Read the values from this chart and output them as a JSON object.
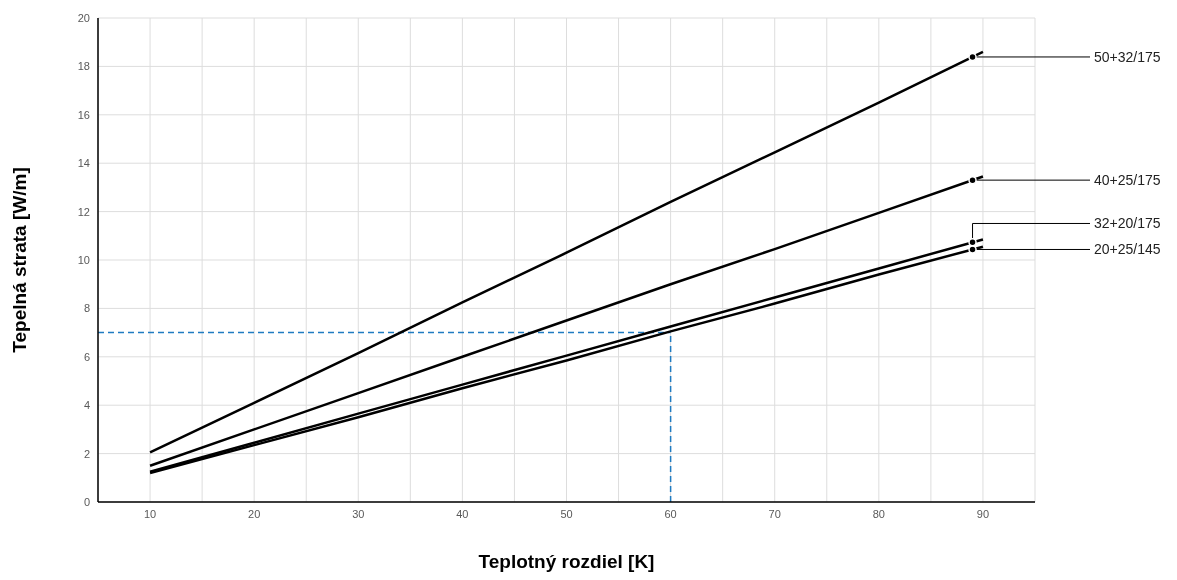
{
  "chart_data": {
    "type": "line",
    "xlabel": "Teplotný rozdiel [K]",
    "ylabel": "Tepelná strata [W/m]",
    "x": [
      10,
      20,
      30,
      40,
      50,
      60,
      70,
      80,
      90
    ],
    "series": [
      {
        "name": "50+32/175",
        "color": "#000000",
        "values": [
          2.05,
          4.1,
          6.15,
          8.25,
          10.3,
          12.4,
          14.45,
          16.5,
          18.6
        ]
      },
      {
        "name": "40+25/175",
        "color": "#000000",
        "values": [
          1.5,
          3.0,
          4.5,
          6.0,
          7.5,
          9.0,
          10.45,
          11.95,
          13.45
        ]
      },
      {
        "name": "32+20/175",
        "color": "#000000",
        "values": [
          1.25,
          2.45,
          3.65,
          4.85,
          6.05,
          7.25,
          8.45,
          9.65,
          10.85
        ]
      },
      {
        "name": "20+25/145",
        "color": "#000000",
        "values": [
          1.2,
          2.35,
          3.5,
          4.7,
          5.85,
          7.05,
          8.2,
          9.4,
          10.55
        ]
      }
    ],
    "xlim": [
      5,
      95
    ],
    "xticks": [
      {
        "value": 5,
        "label": null
      },
      10,
      {
        "value": 15,
        "label": null
      },
      20,
      {
        "value": 25,
        "label": null
      },
      30,
      {
        "value": 35,
        "label": null
      },
      40,
      {
        "value": 45,
        "label": null
      },
      50,
      {
        "value": 55,
        "label": null
      },
      60,
      {
        "value": 65,
        "label": null
      },
      70,
      {
        "value": 75,
        "label": null
      },
      80,
      {
        "value": 85,
        "label": null
      },
      90,
      {
        "value": 95,
        "label": null
      }
    ],
    "ylim": [
      0,
      20
    ],
    "yticks": [
      0,
      2,
      4,
      6,
      8,
      10,
      12,
      14,
      16,
      18,
      20
    ],
    "grid": true,
    "marker": "none",
    "line_style": "solid",
    "legend": false,
    "ref_lines": [
      {
        "axis": "y",
        "value": 7,
        "color": "#1f7bc1",
        "line_style": "dashed"
      },
      {
        "axis": "x",
        "value": 60,
        "color": "#1f7bc1",
        "line_style": "dashed"
      }
    ]
  }
}
